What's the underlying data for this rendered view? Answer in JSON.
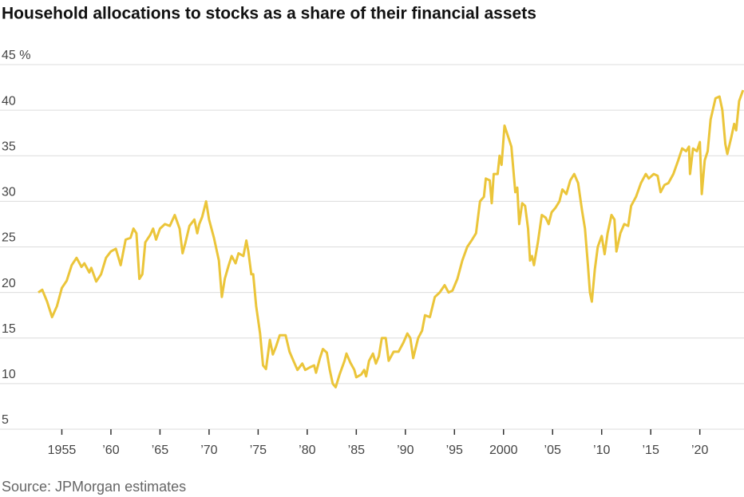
{
  "chart_data": {
    "type": "line",
    "title": "Household allocations to stocks as a share of their financial assets",
    "source": "Source: JPMorgan estimates",
    "x": [
      1952.6,
      1953.0,
      1953.5,
      1954.0,
      1954.5,
      1955.0,
      1955.5,
      1956.0,
      1956.5,
      1957.0,
      1957.3,
      1957.8,
      1958.0,
      1958.5,
      1959.0,
      1959.5,
      1960.0,
      1960.5,
      1961.0,
      1961.5,
      1962.0,
      1962.3,
      1962.6,
      1962.9,
      1963.2,
      1963.5,
      1964.0,
      1964.3,
      1964.6,
      1965.0,
      1965.5,
      1966.0,
      1966.5,
      1967.0,
      1967.3,
      1967.6,
      1968.0,
      1968.5,
      1968.8,
      1969.0,
      1969.3,
      1969.7,
      1970.0,
      1970.5,
      1971.0,
      1971.3,
      1971.6,
      1972.0,
      1972.3,
      1972.7,
      1973.0,
      1973.5,
      1973.8,
      1974.0,
      1974.3,
      1974.5,
      1974.8,
      1975.2,
      1975.5,
      1975.8,
      1976.2,
      1976.5,
      1976.8,
      1977.2,
      1977.8,
      1978.2,
      1978.6,
      1979.0,
      1979.5,
      1979.8,
      1980.3,
      1980.7,
      1980.9,
      1981.3,
      1981.6,
      1982.0,
      1982.3,
      1982.6,
      1982.9,
      1983.3,
      1983.8,
      1984.0,
      1984.4,
      1984.8,
      1985.0,
      1985.5,
      1985.8,
      1986.0,
      1986.3,
      1986.7,
      1987.0,
      1987.3,
      1987.6,
      1988.0,
      1988.3,
      1988.8,
      1989.3,
      1989.8,
      1990.2,
      1990.5,
      1990.8,
      1991.3,
      1991.7,
      1992.0,
      1992.5,
      1993.0,
      1993.5,
      1994.0,
      1994.4,
      1994.8,
      1995.3,
      1995.8,
      1996.3,
      1996.8,
      1997.2,
      1997.6,
      1998.0,
      1998.2,
      1998.6,
      1998.8,
      1999.0,
      1999.4,
      1999.6,
      1999.8,
      2000.1,
      2000.5,
      2000.8,
      2001.2,
      2001.4,
      2001.6,
      2001.9,
      2002.2,
      2002.5,
      2002.7,
      2002.9,
      2003.1,
      2003.5,
      2003.9,
      2004.3,
      2004.6,
      2004.9,
      2005.3,
      2005.7,
      2006.0,
      2006.4,
      2006.8,
      2007.2,
      2007.6,
      2008.0,
      2008.3,
      2008.6,
      2008.8,
      2009.0,
      2009.3,
      2009.6,
      2010.0,
      2010.3,
      2010.6,
      2011.0,
      2011.3,
      2011.5,
      2011.9,
      2012.3,
      2012.7,
      2013.0,
      2013.5,
      2014.0,
      2014.5,
      2014.8,
      2015.3,
      2015.7,
      2016.0,
      2016.4,
      2016.8,
      2017.3,
      2017.8,
      2018.2,
      2018.6,
      2018.9,
      2019.0,
      2019.3,
      2019.7,
      2020.0,
      2020.2,
      2020.5,
      2020.8,
      2021.1,
      2021.6,
      2022.0,
      2022.3,
      2022.6,
      2022.8,
      2023.2,
      2023.5,
      2023.7,
      2024.0,
      2024.4
    ],
    "values": [
      20.0,
      20.3,
      19.0,
      17.3,
      18.5,
      20.5,
      21.3,
      23.0,
      23.8,
      22.8,
      23.2,
      22.2,
      22.7,
      21.2,
      22.0,
      23.8,
      24.5,
      24.8,
      23.0,
      25.8,
      26.0,
      27.0,
      26.5,
      21.5,
      22.0,
      25.5,
      26.3,
      27.0,
      25.8,
      27.0,
      27.5,
      27.3,
      28.5,
      27.0,
      24.3,
      25.5,
      27.3,
      28.0,
      26.5,
      27.5,
      28.3,
      30.0,
      28.0,
      26.0,
      23.5,
      19.5,
      21.5,
      23.0,
      24.0,
      23.2,
      24.3,
      24.0,
      25.7,
      24.5,
      22.0,
      22.0,
      18.5,
      15.5,
      12.0,
      11.6,
      14.8,
      13.2,
      14.0,
      15.3,
      15.3,
      13.5,
      12.5,
      11.5,
      12.2,
      11.5,
      11.8,
      12.0,
      11.2,
      12.8,
      13.8,
      13.4,
      11.5,
      10.0,
      9.6,
      11.0,
      12.5,
      13.3,
      12.3,
      11.5,
      10.7,
      11.0,
      11.5,
      10.8,
      12.5,
      13.3,
      12.2,
      13.0,
      15.0,
      15.0,
      12.5,
      13.5,
      13.5,
      14.5,
      15.5,
      15.0,
      12.8,
      15.0,
      15.8,
      17.5,
      17.3,
      19.5,
      20.0,
      20.8,
      20.0,
      20.2,
      21.5,
      23.5,
      25.0,
      25.8,
      26.5,
      30.0,
      30.5,
      32.5,
      32.3,
      29.8,
      33.0,
      33.0,
      35.0,
      34.0,
      38.3,
      37.0,
      36.0,
      31.0,
      31.5,
      27.5,
      29.8,
      29.5,
      27.0,
      23.5,
      24.0,
      23.0,
      25.5,
      28.5,
      28.2,
      27.5,
      28.8,
      29.3,
      30.0,
      31.3,
      30.8,
      32.3,
      33.0,
      32.0,
      29.0,
      27.0,
      23.0,
      20.0,
      19.0,
      22.5,
      25.0,
      26.2,
      24.2,
      26.5,
      28.5,
      28.0,
      24.5,
      26.5,
      27.5,
      27.3,
      29.5,
      30.5,
      32.0,
      33.0,
      32.5,
      33.0,
      32.8,
      31.0,
      31.8,
      32.0,
      33.0,
      34.5,
      35.8,
      35.5,
      36.0,
      33.0,
      35.8,
      35.5,
      36.5,
      30.8,
      34.5,
      35.5,
      39.0,
      41.3,
      41.5,
      40.0,
      36.3,
      35.2,
      37.0,
      38.5,
      37.8,
      41.0,
      42.2
    ],
    "color": "#ebc53a",
    "xlim": [
      1948.7,
      2024.5
    ],
    "ylim": [
      5,
      45
    ],
    "xticks": [
      {
        "value": 1955,
        "label": "1955"
      },
      {
        "value": 1960,
        "label": "’60"
      },
      {
        "value": 1965,
        "label": "’65"
      },
      {
        "value": 1970,
        "label": "’70"
      },
      {
        "value": 1975,
        "label": "’75"
      },
      {
        "value": 1980,
        "label": "’80"
      },
      {
        "value": 1985,
        "label": "’85"
      },
      {
        "value": 1990,
        "label": "’90"
      },
      {
        "value": 1995,
        "label": "’95"
      },
      2000,
      {
        "value": 2005,
        "label": "’05"
      },
      {
        "value": 2010,
        "label": "’10"
      },
      {
        "value": 2015,
        "label": "’15"
      },
      {
        "value": 2020,
        "label": "’20"
      }
    ],
    "yticks": [
      5,
      10,
      15,
      20,
      25,
      30,
      35,
      {
        "value": 45,
        "label": "45 %"
      },
      40
    ],
    "grid": true
  }
}
